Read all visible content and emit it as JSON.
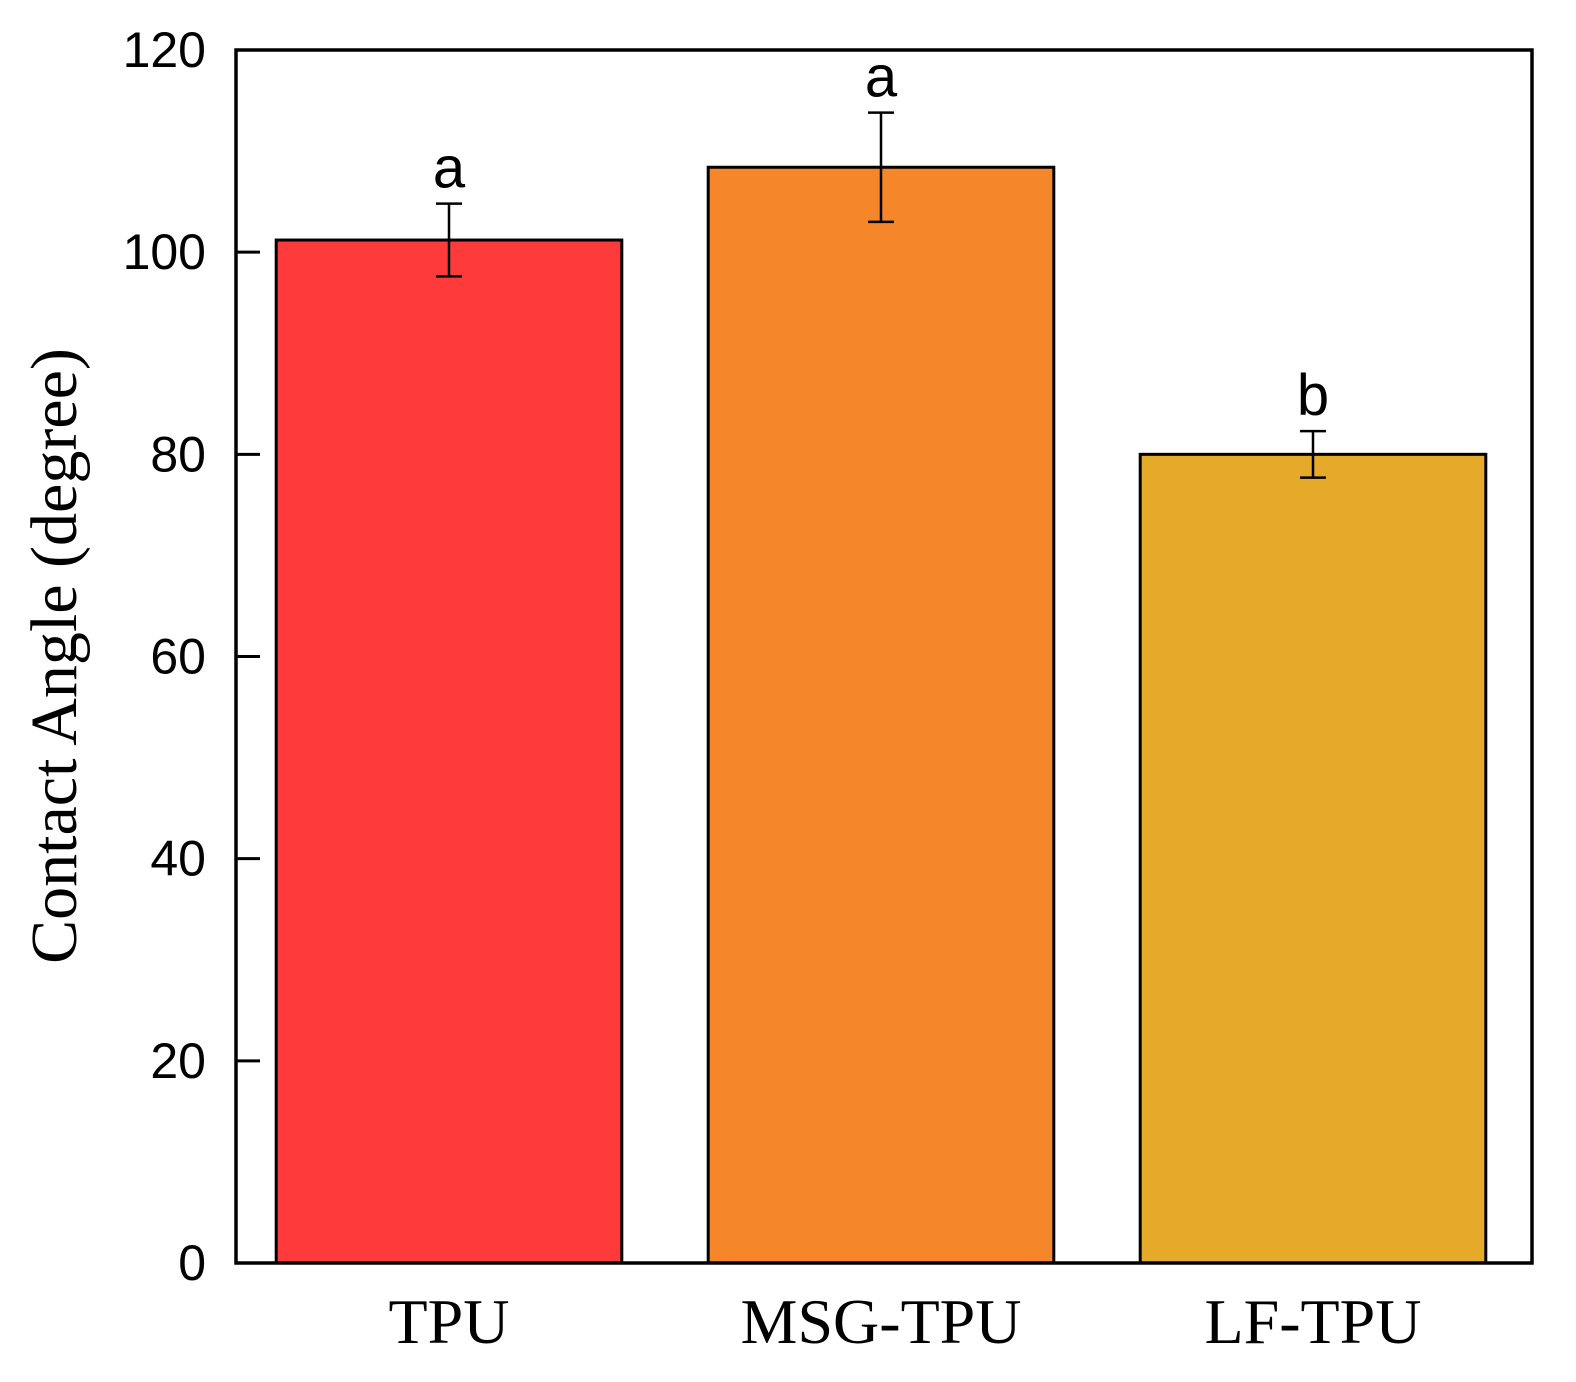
{
  "chart_data": {
    "type": "bar",
    "ylabel": "Contact Angle (degree)",
    "xlabel": "",
    "ylim": [
      0,
      120
    ],
    "yticks": [
      0,
      20,
      40,
      60,
      80,
      100,
      120
    ],
    "grid": false,
    "categories": [
      "TPU",
      "MSG-TPU",
      "LF-TPU"
    ],
    "values": [
      101.2,
      108.4,
      80.0
    ],
    "errors": [
      3.6,
      5.4,
      2.3
    ],
    "significance": [
      "a",
      "a",
      "b"
    ],
    "colors": [
      "#fe3a3a",
      "#f5862a",
      "#e5aa2a"
    ]
  }
}
